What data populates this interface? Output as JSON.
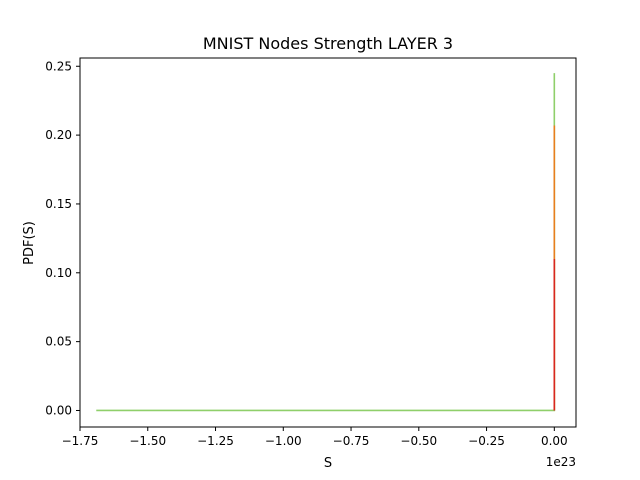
{
  "chart_data": {
    "type": "line",
    "title": "MNIST Nodes Strength LAYER 3",
    "xlabel": "S",
    "ylabel": "PDF(S)",
    "x_offset_label": "1e23",
    "xlim": [
      -1.75,
      0.08
    ],
    "ylim": [
      -0.012,
      0.256
    ],
    "x_ticks": [
      -1.75,
      -1.5,
      -1.25,
      -1.0,
      -0.75,
      -0.5,
      -0.25,
      0.0
    ],
    "x_tick_labels": [
      "−1.75",
      "−1.50",
      "−1.25",
      "−1.00",
      "−0.75",
      "−0.50",
      "−0.25",
      "0.00"
    ],
    "y_ticks": [
      0.0,
      0.05,
      0.1,
      0.15,
      0.2,
      0.25
    ],
    "y_tick_labels": [
      "0.00",
      "0.05",
      "0.10",
      "0.15",
      "0.20",
      "0.25"
    ],
    "grid": false,
    "series": [
      {
        "color": "#8fcf6a",
        "points": [
          [
            -1.69,
            0.0
          ],
          [
            0.0,
            0.0
          ],
          [
            0.0,
            0.245
          ],
          [
            0.0,
            0.0
          ]
        ]
      },
      {
        "color": "#e87e1e",
        "points": [
          [
            0.0,
            0.0
          ],
          [
            0.0,
            0.207
          ],
          [
            0.0,
            0.0
          ]
        ]
      },
      {
        "color": "#d8271f",
        "points": [
          [
            0.0,
            0.0
          ],
          [
            0.0,
            0.11
          ],
          [
            0.0,
            0.0
          ]
        ]
      }
    ]
  }
}
